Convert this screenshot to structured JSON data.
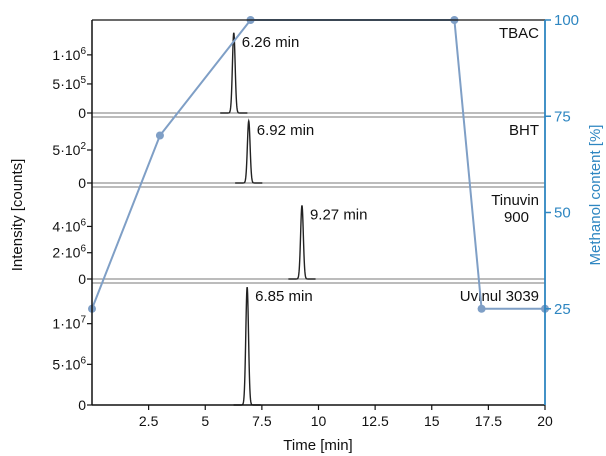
{
  "chart_data": {
    "type": "line",
    "xlabel": "Time [min]",
    "ylabel": "Intensity [counts]",
    "y2label": "Methanol content [%]",
    "xlim": [
      0,
      20
    ],
    "x_ticks": [
      {
        "value": 2.5,
        "label": "2.5"
      },
      {
        "value": 5,
        "label": "5"
      },
      {
        "value": 7.5,
        "label": "7.5"
      },
      {
        "value": 10,
        "label": "10"
      },
      {
        "value": 12.5,
        "label": "12.5"
      },
      {
        "value": 15,
        "label": "15"
      },
      {
        "value": 17.5,
        "label": "17.5"
      },
      {
        "value": 20,
        "label": "20"
      }
    ],
    "colors": {
      "peaks": "#222222",
      "gradient": "#7f9fc6",
      "right_axis": "#2e86c1"
    },
    "panels": [
      {
        "compound": "TBAC",
        "peak_time": 6.26,
        "peak_label": "6.26 min",
        "peak_height": 1380000,
        "ylim": [
          0,
          1600000
        ],
        "yticks": [
          {
            "value": 0,
            "base": "0",
            "exp": ""
          },
          {
            "value": 500000,
            "base": "5·10",
            "exp": "5"
          },
          {
            "value": 1000000,
            "base": "1·10",
            "exp": "6"
          }
        ]
      },
      {
        "compound": "BHT",
        "peak_time": 6.92,
        "peak_label": "6.92 min",
        "peak_height": 940,
        "ylim": [
          0,
          1000
        ],
        "yticks": [
          {
            "value": 0,
            "base": "0",
            "exp": ""
          },
          {
            "value": 500,
            "base": "5·10",
            "exp": "2"
          }
        ]
      },
      {
        "compound": "Tinuvin\n900",
        "peak_time": 9.27,
        "peak_label": "9.27 min",
        "peak_height": 5600000,
        "ylim": [
          0,
          7000000
        ],
        "yticks": [
          {
            "value": 0,
            "base": "0",
            "exp": ""
          },
          {
            "value": 2000000,
            "base": "2·10",
            "exp": "6"
          },
          {
            "value": 4000000,
            "base": "4·10",
            "exp": "6"
          }
        ]
      },
      {
        "compound": "Uvinul 3039",
        "peak_time": 6.85,
        "peak_label": "6.85 min",
        "peak_height": 14500000,
        "ylim": [
          0,
          15000000
        ],
        "yticks": [
          {
            "value": 0,
            "base": "0",
            "exp": ""
          },
          {
            "value": 5000000,
            "base": "5·10",
            "exp": "6"
          },
          {
            "value": 10000000,
            "base": "1·10",
            "exp": "7"
          }
        ]
      }
    ],
    "gradient": {
      "ylim": [
        0,
        100
      ],
      "right_ticks": [
        {
          "value": 25,
          "label": "25"
        },
        {
          "value": 50,
          "label": "50"
        },
        {
          "value": 75,
          "label": "75"
        },
        {
          "value": 100,
          "label": "100"
        }
      ],
      "points": [
        {
          "x": 0,
          "y": 25
        },
        {
          "x": 3,
          "y": 70
        },
        {
          "x": 7,
          "y": 100
        },
        {
          "x": 16,
          "y": 100
        },
        {
          "x": 17.2,
          "y": 25
        },
        {
          "x": 20,
          "y": 25
        }
      ]
    }
  }
}
